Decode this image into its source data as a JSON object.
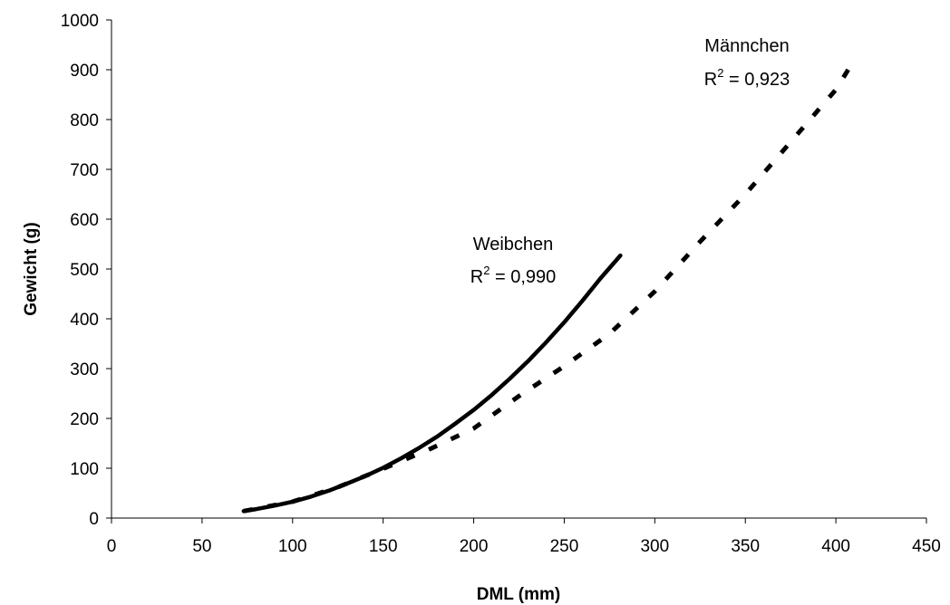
{
  "chart_data": {
    "type": "line",
    "title": "",
    "xlabel": "DML (mm)",
    "ylabel": "Gewicht (g)",
    "xlim": [
      0,
      450
    ],
    "ylim": [
      0,
      1000
    ],
    "xticks": [
      0,
      50,
      100,
      150,
      200,
      250,
      300,
      350,
      400,
      450
    ],
    "yticks": [
      0,
      100,
      200,
      300,
      400,
      500,
      600,
      700,
      800,
      900,
      1000
    ],
    "grid": false,
    "legend": "none",
    "series": [
      {
        "name": "Weibchen",
        "r2_label": "R² = 0,990",
        "style": "solid",
        "color": "#000000",
        "x": [
          73,
          80,
          90,
          100,
          110,
          120,
          130,
          140,
          150,
          160,
          170,
          180,
          190,
          200,
          210,
          220,
          230,
          240,
          250,
          260,
          270,
          281
        ],
        "y": [
          14,
          18,
          25,
          33,
          43,
          55,
          69,
          84,
          101,
          120,
          141,
          164,
          190,
          217,
          247,
          280,
          315,
          353,
          393,
          436,
          481,
          527
        ]
      },
      {
        "name": "Männchen",
        "r2_label": "R² = 0,923",
        "style": "dashed",
        "color": "#000000",
        "x": [
          73,
          100,
          125,
          150,
          175,
          200,
          225,
          250,
          275,
          300,
          325,
          350,
          375,
          400,
          408
        ],
        "y": [
          14,
          33,
          62,
          99,
          137,
          180,
          245,
          305,
          370,
          455,
          555,
          650,
          755,
          860,
          907
        ]
      }
    ],
    "annotations": [
      {
        "series": 0,
        "name": "Weibchen",
        "r2_prefix": "R",
        "r2_sup": "2",
        "r2_value": " = 0,990"
      },
      {
        "series": 1,
        "name": "Männchen",
        "r2_prefix": "R",
        "r2_sup": "2",
        "r2_value": " = 0,923"
      }
    ]
  }
}
